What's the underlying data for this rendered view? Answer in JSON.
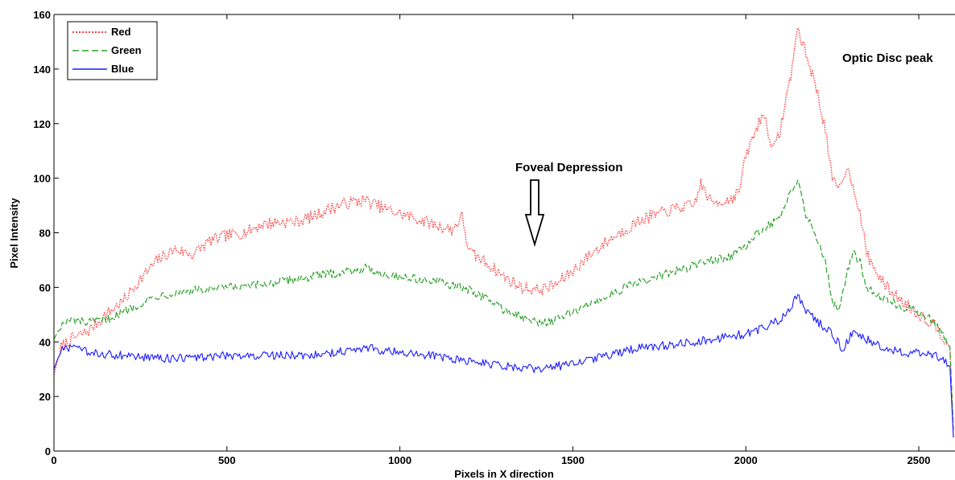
{
  "chart_data": {
    "type": "line",
    "title": "",
    "xlabel": "Pixels in X direction",
    "ylabel": "Pixel Intensity",
    "xlim": [
      0,
      2600
    ],
    "ylim": [
      0,
      160
    ],
    "x_ticks": [
      0,
      500,
      1000,
      1500,
      2000,
      2500
    ],
    "y_ticks": [
      0,
      20,
      40,
      60,
      80,
      100,
      120,
      140,
      160
    ],
    "x_tick_labels": [
      "0",
      "500",
      "1000",
      "1500",
      "2000",
      "2500"
    ],
    "y_tick_labels": [
      "0",
      "20",
      "40",
      "60",
      "80",
      "100",
      "120",
      "140",
      "160"
    ],
    "grid": false,
    "legend_position": "top-left",
    "series": [
      {
        "name": "Red",
        "color": "#ff4040",
        "style": "dotted",
        "x": [
          0,
          20,
          50,
          100,
          150,
          200,
          250,
          300,
          350,
          400,
          450,
          500,
          550,
          600,
          650,
          700,
          750,
          800,
          850,
          900,
          950,
          1000,
          1050,
          1100,
          1150,
          1180,
          1200,
          1250,
          1300,
          1350,
          1400,
          1450,
          1500,
          1550,
          1600,
          1650,
          1700,
          1750,
          1800,
          1850,
          1870,
          1900,
          1950,
          1980,
          2000,
          2030,
          2050,
          2080,
          2100,
          2130,
          2150,
          2170,
          2200,
          2230,
          2250,
          2270,
          2290,
          2310,
          2330,
          2350,
          2380,
          2400,
          2450,
          2500,
          2550,
          2590,
          2600
        ],
        "values": [
          28,
          38,
          41,
          44,
          50,
          55,
          63,
          70,
          74,
          72,
          77,
          79,
          80,
          83,
          84,
          84,
          86,
          89,
          91,
          92,
          89,
          87,
          85,
          83,
          81,
          86,
          73,
          69,
          64,
          60,
          59,
          61,
          66,
          72,
          77,
          81,
          85,
          87,
          89,
          90,
          98,
          91,
          92,
          95,
          108,
          118,
          124,
          110,
          118,
          138,
          155,
          147,
          135,
          118,
          99,
          96,
          104,
          98,
          87,
          72,
          65,
          61,
          55,
          50,
          46,
          38,
          5
        ]
      },
      {
        "name": "Green",
        "color": "#2ca02c",
        "style": "dashed",
        "x": [
          0,
          20,
          50,
          100,
          150,
          200,
          250,
          300,
          350,
          400,
          450,
          500,
          550,
          600,
          650,
          700,
          750,
          800,
          850,
          900,
          950,
          1000,
          1050,
          1100,
          1150,
          1200,
          1250,
          1300,
          1350,
          1400,
          1450,
          1500,
          1550,
          1600,
          1650,
          1700,
          1750,
          1800,
          1850,
          1900,
          1950,
          2000,
          2050,
          2100,
          2130,
          2150,
          2170,
          2200,
          2230,
          2250,
          2270,
          2290,
          2310,
          2330,
          2350,
          2400,
          2450,
          2500,
          2550,
          2590,
          2600
        ],
        "values": [
          41,
          46,
          48,
          47,
          48,
          51,
          54,
          57,
          58,
          59,
          59,
          60,
          60,
          61,
          62,
          63,
          64,
          65,
          66,
          67,
          65,
          64,
          63,
          62,
          61,
          59,
          56,
          52,
          49,
          47,
          48,
          51,
          54,
          57,
          60,
          62,
          64,
          66,
          68,
          70,
          71,
          75,
          82,
          85,
          95,
          100,
          88,
          80,
          70,
          55,
          52,
          64,
          73,
          69,
          60,
          56,
          53,
          51,
          47,
          38,
          8
        ]
      },
      {
        "name": "Blue",
        "color": "#1a1aff",
        "style": "solid",
        "x": [
          0,
          20,
          50,
          100,
          200,
          300,
          400,
          500,
          600,
          700,
          800,
          900,
          1000,
          1100,
          1200,
          1300,
          1400,
          1500,
          1600,
          1700,
          1800,
          1900,
          2000,
          2050,
          2100,
          2130,
          2150,
          2170,
          2200,
          2250,
          2280,
          2310,
          2350,
          2400,
          2450,
          2500,
          2550,
          2590,
          2600
        ],
        "values": [
          30,
          37,
          38,
          36,
          35,
          34,
          34,
          35,
          35,
          35,
          36,
          38,
          36,
          35,
          33,
          31,
          30,
          32,
          35,
          38,
          39,
          41,
          43,
          45,
          48,
          53,
          57,
          52,
          48,
          43,
          37,
          44,
          41,
          38,
          36,
          36,
          35,
          31,
          5
        ]
      }
    ],
    "annotations": [
      {
        "text": "Foveal Depression",
        "x": 1380,
        "y": 105
      },
      {
        "text": "Optic Disc peak",
        "x": 2260,
        "y": 135
      }
    ]
  }
}
